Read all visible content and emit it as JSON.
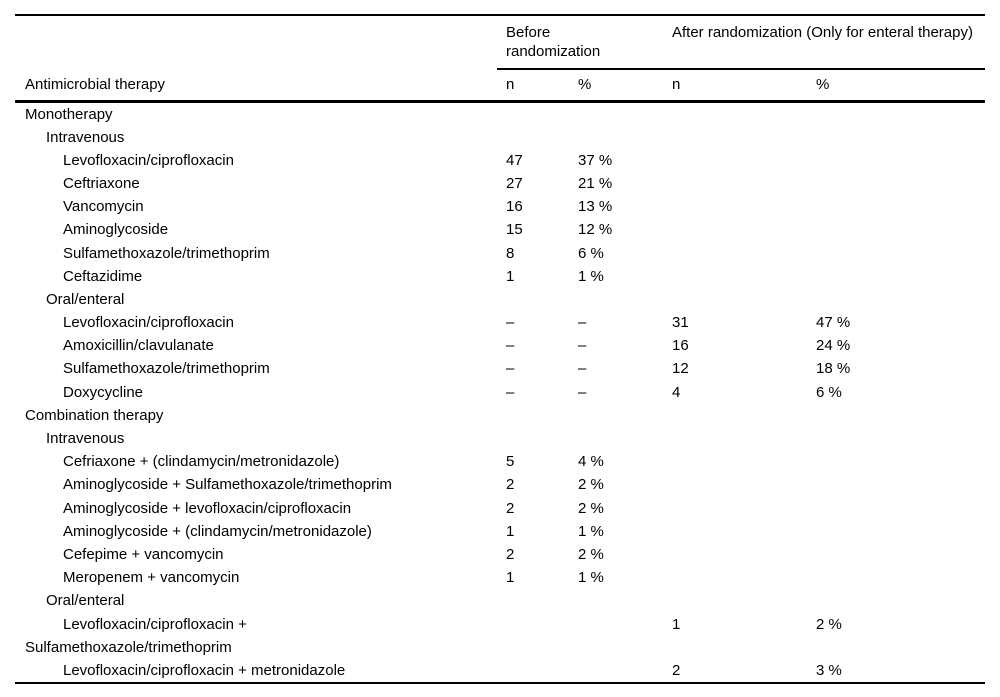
{
  "page": {
    "background_color": "#ffffff",
    "text_color": "#000000"
  },
  "table": {
    "header": {
      "therapy_column_label": "Antimicrobial therapy",
      "groups": [
        {
          "label": "Before randomization",
          "subcolumns": [
            "n",
            "%"
          ]
        },
        {
          "label": "After randomization (Only for enteral therapy)",
          "subcolumns": [
            "n",
            "%"
          ]
        }
      ]
    },
    "rows": [
      {
        "label": "Monotherapy",
        "indent": 0,
        "before_n": "",
        "before_pct": "",
        "after_n": "",
        "after_pct": ""
      },
      {
        "label": "Intravenous",
        "indent": 1,
        "before_n": "",
        "before_pct": "",
        "after_n": "",
        "after_pct": ""
      },
      {
        "label": "Levofloxacin/ciprofloxacin",
        "indent": 2,
        "before_n": "47",
        "before_pct": "37 %",
        "after_n": "",
        "after_pct": ""
      },
      {
        "label": "Ceftriaxone",
        "indent": 2,
        "before_n": "27",
        "before_pct": "21 %",
        "after_n": "",
        "after_pct": ""
      },
      {
        "label": "Vancomycin",
        "indent": 2,
        "before_n": "16",
        "before_pct": "13 %",
        "after_n": "",
        "after_pct": ""
      },
      {
        "label": "Aminoglycoside",
        "indent": 2,
        "before_n": "15",
        "before_pct": "12 %",
        "after_n": "",
        "after_pct": ""
      },
      {
        "label": "Sulfamethoxazole/trimethoprim",
        "indent": 2,
        "before_n": "8",
        "before_pct": "6 %",
        "after_n": "",
        "after_pct": ""
      },
      {
        "label": "Ceftazidime",
        "indent": 2,
        "before_n": "1",
        "before_pct": "1 %",
        "after_n": "",
        "after_pct": ""
      },
      {
        "label": "Oral/enteral",
        "indent": 1,
        "before_n": "",
        "before_pct": "",
        "after_n": "",
        "after_pct": ""
      },
      {
        "label": "Levofloxacin/ciprofloxacin",
        "indent": 2,
        "before_n": "–",
        "before_pct": "–",
        "after_n": "31",
        "after_pct": "47 %"
      },
      {
        "label": "Amoxicillin/clavulanate",
        "indent": 2,
        "before_n": "–",
        "before_pct": "–",
        "after_n": "16",
        "after_pct": "24 %"
      },
      {
        "label": "Sulfamethoxazole/trimethoprim",
        "indent": 2,
        "before_n": "–",
        "before_pct": "–",
        "after_n": "12",
        "after_pct": "18 %"
      },
      {
        "label": "Doxycycline",
        "indent": 2,
        "before_n": "–",
        "before_pct": "–",
        "after_n": "4",
        "after_pct": "6 %"
      },
      {
        "label": "Combination therapy",
        "indent": 0,
        "before_n": "",
        "before_pct": "",
        "after_n": "",
        "after_pct": ""
      },
      {
        "label": "Intravenous",
        "indent": 1,
        "before_n": "",
        "before_pct": "",
        "after_n": "",
        "after_pct": ""
      },
      {
        "label": "Cefriaxone + (clindamycin/metronidazole)",
        "indent": 2,
        "before_n": "5",
        "before_pct": "4 %",
        "after_n": "",
        "after_pct": ""
      },
      {
        "label": "Aminoglycoside + Sulfamethoxazole/trimethoprim",
        "indent": 2,
        "before_n": "2",
        "before_pct": "2 %",
        "after_n": "",
        "after_pct": ""
      },
      {
        "label": "Aminoglycoside + levofloxacin/ciprofloxacin",
        "indent": 2,
        "before_n": "2",
        "before_pct": "2 %",
        "after_n": "",
        "after_pct": ""
      },
      {
        "label": "Aminoglycoside + (clindamycin/metronidazole)",
        "indent": 2,
        "before_n": "1",
        "before_pct": "1 %",
        "after_n": "",
        "after_pct": ""
      },
      {
        "label": "Cefepime + vancomycin",
        "indent": 2,
        "before_n": "2",
        "before_pct": "2 %",
        "after_n": "",
        "after_pct": ""
      },
      {
        "label": "Meropenem + vancomycin",
        "indent": 2,
        "before_n": "1",
        "before_pct": "1 %",
        "after_n": "",
        "after_pct": ""
      },
      {
        "label": "Oral/enteral",
        "indent": 1,
        "before_n": "",
        "before_pct": "",
        "after_n": "",
        "after_pct": ""
      },
      {
        "label": "Levofloxacin/ciprofloxacin +",
        "indent": 2,
        "before_n": "",
        "before_pct": "",
        "after_n": "1",
        "after_pct": "2 %"
      },
      {
        "label": "Sulfamethoxazole/trimethoprim",
        "indent": 0,
        "before_n": "",
        "before_pct": "",
        "after_n": "",
        "after_pct": ""
      },
      {
        "label": "Levofloxacin/ciprofloxacin + metronidazole",
        "indent": 2,
        "before_n": "",
        "before_pct": "",
        "after_n": "2",
        "after_pct": "3 %"
      }
    ]
  }
}
